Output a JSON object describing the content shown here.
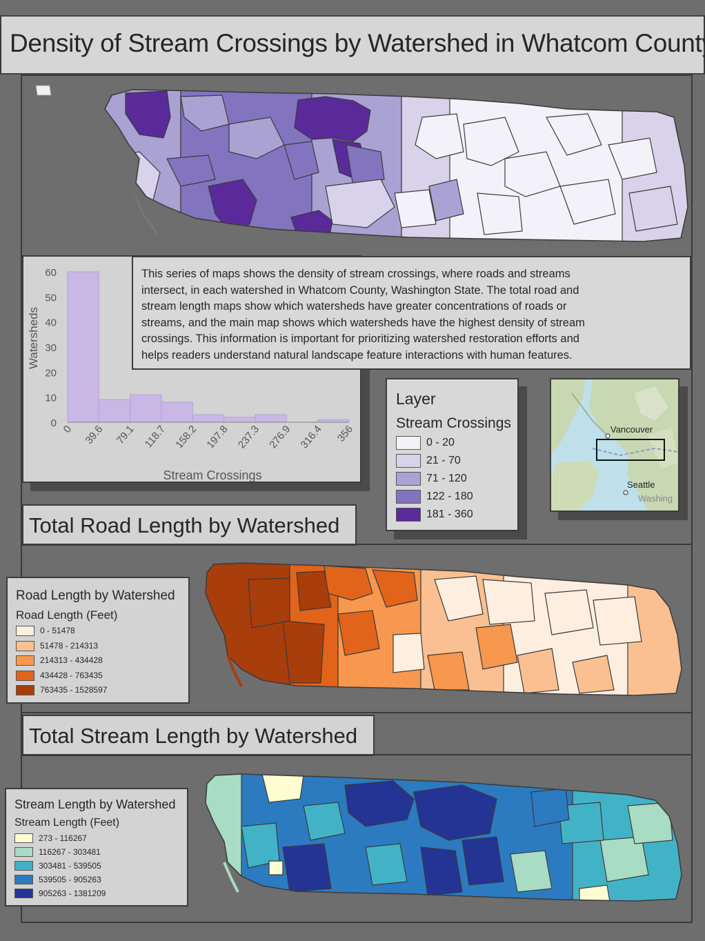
{
  "title": "Density of Stream Crossings by Watershed in Whatcom County",
  "description": "This series of maps shows the density of stream crossings, where roads and streams intersect, in each watershed in Whatcom County, Washington State. The total road and stream length maps show which watersheds have greater concentrations of roads or streams, and the main map shows which watersheds have the highest density of stream crossings. This information is important for prioritizing watershed restoration efforts and helps readers understand natural landscape feature interactions with human features.",
  "description_lines": [
    "This series of maps shows the density of stream crossings, where roads and streams",
    "intersect, in each watershed in Whatcom County, Washington State. The total road and",
    "stream length maps show which watersheds have greater concentrations of roads or",
    "streams, and the main map shows which watersheds have the highest density of stream",
    "crossings. This information is important for prioritizing watershed restoration efforts and",
    "helps readers understand natural landscape feature interactions with human features."
  ],
  "chart_data": {
    "type": "bar",
    "xlabel": "Stream Crossings",
    "ylabel": "Watersheds",
    "ylim": [
      0,
      60
    ],
    "y_ticks": [
      "0",
      "10",
      "20",
      "30",
      "40",
      "50",
      "60"
    ],
    "x_ticks": [
      "0",
      "39.6",
      "79.1",
      "118.7",
      "158.2",
      "197.8",
      "237.3",
      "276.9",
      "316.4",
      "356"
    ],
    "bins": [
      [
        0,
        39.6
      ],
      [
        39.6,
        79.1
      ],
      [
        79.1,
        118.7
      ],
      [
        118.7,
        158.2
      ],
      [
        158.2,
        197.8
      ],
      [
        197.8,
        237.3
      ],
      [
        237.3,
        276.9
      ],
      [
        276.9,
        316.4
      ],
      [
        316.4,
        356
      ]
    ],
    "values": [
      60,
      9,
      11,
      8,
      3,
      2,
      3,
      0,
      1
    ],
    "bar_color": "#c9b8e6"
  },
  "crossings_legend": {
    "heading": "Layer",
    "title": "Stream Crossings",
    "classes": [
      {
        "label": "0 - 20",
        "color": "#f4f2f9"
      },
      {
        "label": "21 - 70",
        "color": "#d8d3ea"
      },
      {
        "label": "71 - 120",
        "color": "#aaa2d3"
      },
      {
        "label": "122 - 180",
        "color": "#8374c0"
      },
      {
        "label": "181 - 360",
        "color": "#5a2a9a"
      }
    ]
  },
  "inset": {
    "labels": [
      "Vancouver",
      "Seattle",
      "Washing"
    ]
  },
  "road_section": {
    "title": "Total Road Length by Watershed",
    "legend_title": "Road Length by Watershed",
    "legend_sub": "Road Length (Feet)",
    "classes": [
      {
        "label": "0 - 51478",
        "color": "#fdeee0"
      },
      {
        "label": "51478 - 214313",
        "color": "#fbc091"
      },
      {
        "label": "214313 - 434428",
        "color": "#f7984e"
      },
      {
        "label": "434428 - 763435",
        "color": "#e2631a"
      },
      {
        "label": "763435 - 1528597",
        "color": "#a83e0c"
      }
    ]
  },
  "stream_section": {
    "title": "Total Stream Length by Watershed",
    "legend_title": "Stream Length by Watershed",
    "legend_sub": "Stream Length (Feet)",
    "classes": [
      {
        "label": "273 - 116267",
        "color": "#fefed2"
      },
      {
        "label": "116267 - 303481",
        "color": "#a8dcc4"
      },
      {
        "label": "303481 - 539505",
        "color": "#42b3c7"
      },
      {
        "label": "539505 - 905263",
        "color": "#2c7bc0"
      },
      {
        "label": "905263 - 1381209",
        "color": "#243494"
      }
    ]
  }
}
